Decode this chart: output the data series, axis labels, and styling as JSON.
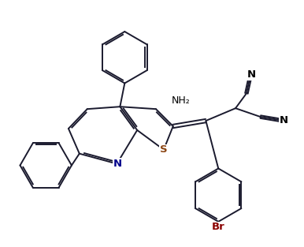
{
  "bg_color": "#ffffff",
  "line_color": "#1a1a2e",
  "atom_colors": {
    "N": "#00008B",
    "S": "#8B4513",
    "Br": "#8B0000",
    "C": "#1a1a2e"
  },
  "figsize": [
    3.86,
    3.13
  ],
  "dpi": 100
}
